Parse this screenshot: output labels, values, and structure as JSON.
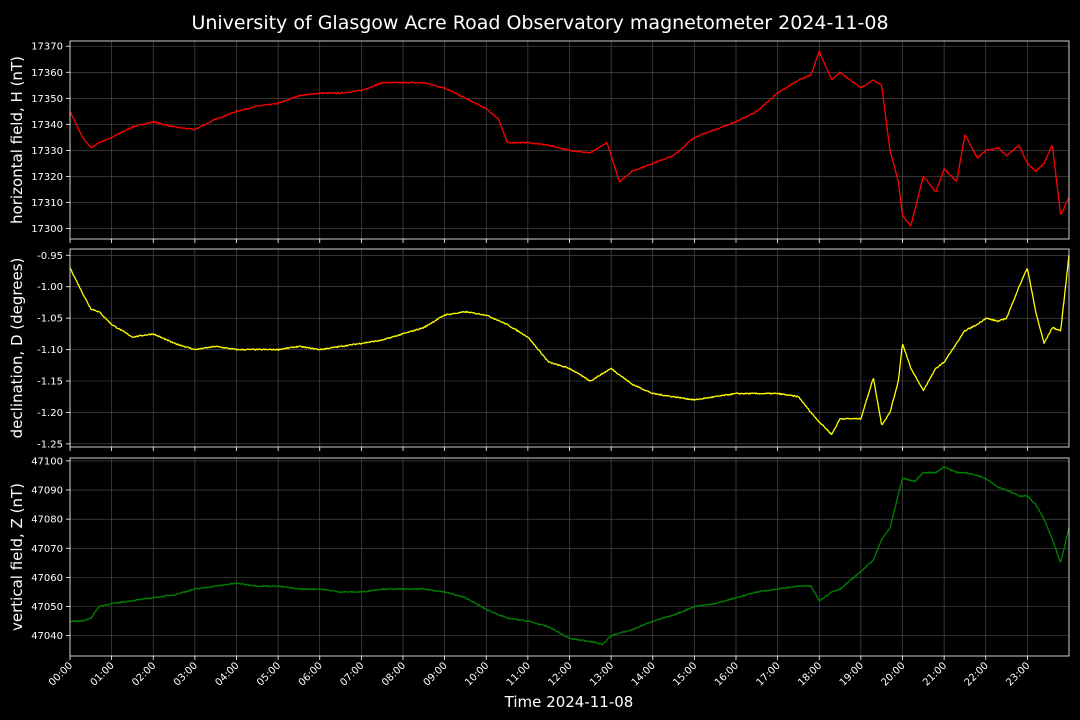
{
  "title": "University of Glasgow Acre Road Observatory magnetometer 2024-11-08",
  "colors": {
    "background": "#000000",
    "grid": "#555555",
    "frame": "#ffffff"
  },
  "chart_data": [
    {
      "type": "line",
      "ylabel": "horizontal field, H (nT)",
      "color": "#ff0000",
      "ylim": [
        17296,
        17372
      ],
      "yticks": [
        17300,
        17310,
        17320,
        17330,
        17340,
        17350,
        17360,
        17370
      ],
      "x_hours": [
        0,
        0.3,
        0.5,
        0.7,
        1,
        1.5,
        2,
        2.5,
        3,
        3.5,
        4,
        4.5,
        5,
        5.5,
        6,
        6.5,
        7,
        7.5,
        8,
        8.5,
        9,
        9.5,
        10,
        10.3,
        10.5,
        11,
        11.5,
        12,
        12.5,
        12.9,
        13.2,
        13.5,
        14,
        14.5,
        15,
        15.5,
        16,
        16.5,
        17,
        17.5,
        17.8,
        18,
        18.3,
        18.5,
        19,
        19.3,
        19.5,
        19.7,
        19.9,
        20,
        20.2,
        20.5,
        20.8,
        21,
        21.3,
        21.5,
        21.8,
        22,
        22.3,
        22.5,
        22.8,
        23,
        23.2,
        23.4,
        23.6,
        23.8,
        24
      ],
      "values": [
        17345,
        17335,
        17331,
        17333,
        17335,
        17339,
        17341,
        17339,
        17338,
        17342,
        17345,
        17347,
        17348,
        17351,
        17352,
        17352,
        17353,
        17356,
        17356,
        17356,
        17354,
        17350,
        17346,
        17342,
        17333,
        17333,
        17332,
        17330,
        17329,
        17333,
        17318,
        17322,
        17325,
        17328,
        17335,
        17338,
        17341,
        17345,
        17352,
        17357,
        17359,
        17368,
        17357,
        17360,
        17354,
        17357,
        17355,
        17330,
        17318,
        17305,
        17301,
        17320,
        17314,
        17323,
        17318,
        17336,
        17327,
        17330,
        17331,
        17328,
        17332,
        17325,
        17322,
        17325,
        17332,
        17305,
        17312
      ]
    },
    {
      "type": "line",
      "ylabel": "declination, D (degrees)",
      "color": "#ffff00",
      "ylim": [
        -1.255,
        -0.94
      ],
      "yticks": [
        -1.25,
        -1.2,
        -1.15,
        -1.1,
        -1.05,
        -1.0,
        -0.95
      ],
      "x_hours": [
        0,
        0.3,
        0.5,
        0.7,
        1,
        1.5,
        2,
        2.5,
        3,
        3.5,
        4,
        4.5,
        5,
        5.5,
        6,
        6.5,
        7,
        7.5,
        8,
        8.5,
        9,
        9.5,
        10,
        10.5,
        11,
        11.5,
        12,
        12.5,
        13,
        13.5,
        14,
        14.5,
        15,
        15.5,
        16,
        16.5,
        17,
        17.5,
        17.8,
        18,
        18.3,
        18.5,
        19,
        19.3,
        19.5,
        19.7,
        19.9,
        20,
        20.2,
        20.5,
        20.8,
        21,
        21.3,
        21.5,
        21.8,
        22,
        22.3,
        22.5,
        22.8,
        23,
        23.2,
        23.4,
        23.6,
        23.8,
        24
      ],
      "values": [
        -0.97,
        -1.01,
        -1.035,
        -1.04,
        -1.06,
        -1.08,
        -1.075,
        -1.09,
        -1.1,
        -1.095,
        -1.1,
        -1.1,
        -1.1,
        -1.095,
        -1.1,
        -1.095,
        -1.09,
        -1.085,
        -1.075,
        -1.065,
        -1.045,
        -1.04,
        -1.045,
        -1.06,
        -1.08,
        -1.12,
        -1.13,
        -1.15,
        -1.13,
        -1.155,
        -1.17,
        -1.175,
        -1.18,
        -1.175,
        -1.17,
        -1.17,
        -1.17,
        -1.175,
        -1.2,
        -1.215,
        -1.235,
        -1.21,
        -1.21,
        -1.145,
        -1.22,
        -1.2,
        -1.15,
        -1.09,
        -1.13,
        -1.165,
        -1.13,
        -1.12,
        -1.09,
        -1.07,
        -1.06,
        -1.05,
        -1.055,
        -1.05,
        -1.0,
        -0.97,
        -1.04,
        -1.09,
        -1.065,
        -1.07,
        -0.95
      ]
    },
    {
      "type": "line",
      "ylabel": "vertical field, Z (nT)",
      "color": "#008000",
      "ylim": [
        47033,
        47101
      ],
      "yticks": [
        47040,
        47050,
        47060,
        47070,
        47080,
        47090,
        47100
      ],
      "x_hours": [
        0,
        0.3,
        0.5,
        0.7,
        1,
        1.5,
        2,
        2.5,
        3,
        3.5,
        4,
        4.5,
        5,
        5.5,
        6,
        6.5,
        7,
        7.5,
        8,
        8.5,
        9,
        9.5,
        10,
        10.5,
        11,
        11.5,
        12,
        12.5,
        12.8,
        13,
        13.5,
        14,
        14.5,
        15,
        15.5,
        16,
        16.5,
        17,
        17.5,
        17.8,
        18,
        18.3,
        18.5,
        19,
        19.3,
        19.5,
        19.7,
        20,
        20.3,
        20.5,
        20.8,
        21,
        21.3,
        21.5,
        21.8,
        22,
        22.3,
        22.5,
        22.8,
        23,
        23.2,
        23.4,
        23.6,
        23.8,
        24
      ],
      "values": [
        47045,
        47045,
        47046,
        47050,
        47051,
        47052,
        47053,
        47054,
        47056,
        47057,
        47058,
        47057,
        47057,
        47056,
        47056,
        47055,
        47055,
        47056,
        47056,
        47056,
        47055,
        47053,
        47049,
        47046,
        47045,
        47043,
        47039,
        47038,
        47037,
        47040,
        47042,
        47045,
        47047,
        47050,
        47051,
        47053,
        47055,
        47056,
        47057,
        47057,
        47052,
        47055,
        47056,
        47062,
        47066,
        47073,
        47077,
        47094,
        47093,
        47096,
        47096,
        47098,
        47096,
        47096,
        47095,
        47094,
        47091,
        47090,
        47088,
        47088,
        47085,
        47080,
        47073,
        47065,
        47077
      ]
    }
  ],
  "x_axis": {
    "label": "Time 2024-11-08",
    "xlim": [
      0,
      24
    ],
    "tick_hours": [
      0,
      1,
      2,
      3,
      4,
      5,
      6,
      7,
      8,
      9,
      10,
      11,
      12,
      13,
      14,
      15,
      16,
      17,
      18,
      19,
      20,
      21,
      22,
      23
    ],
    "tick_labels": [
      "00:00",
      "01:00",
      "02:00",
      "03:00",
      "04:00",
      "05:00",
      "06:00",
      "07:00",
      "08:00",
      "09:00",
      "10:00",
      "11:00",
      "12:00",
      "13:00",
      "14:00",
      "15:00",
      "16:00",
      "17:00",
      "18:00",
      "19:00",
      "20:00",
      "21:00",
      "22:00",
      "23:00"
    ]
  }
}
